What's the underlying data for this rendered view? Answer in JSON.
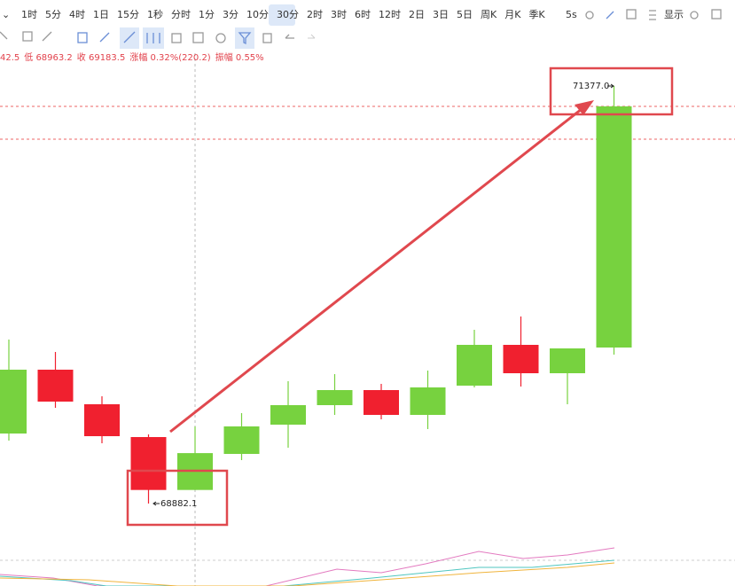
{
  "toolbar": {
    "intervals": [
      "1时",
      "5分",
      "4时",
      "1日",
      "15分",
      "1秒",
      "分时",
      "1分",
      "3分",
      "10分",
      "30分",
      "2时",
      "3时",
      "6时",
      "12时",
      "2日",
      "3日",
      "5日",
      "周K",
      "月K",
      "季K"
    ],
    "right": [
      "5s",
      "显示"
    ]
  },
  "info": [
    "42.5",
    "低 68963.2",
    "收 69183.5",
    "涨幅 0.32%(220.2)",
    "振幅 0.55%"
  ],
  "chart_data": {
    "type": "candlestick",
    "ylim": [
      68389.5,
      71573.0
    ],
    "up_color": "#77d23f",
    "down_color": "#f0202f",
    "candles": [
      {
        "open": 69300.6,
        "high": 69862.1,
        "low": 69258.2,
        "close": 69682.0
      },
      {
        "open": 69682.0,
        "high": 69787.9,
        "low": 69454.2,
        "close": 69491.3
      },
      {
        "open": 69475.4,
        "high": 69523.0,
        "low": 69242.3,
        "close": 69284.7
      },
      {
        "open": 69279.4,
        "high": 69295.3,
        "low": 68882.1,
        "close": 68963.3
      },
      {
        "open": 68963.3,
        "high": 69342.5,
        "low": 68963.2,
        "close": 69183.5
      },
      {
        "open": 69178.7,
        "high": 69422.4,
        "low": 69141.7,
        "close": 69343.0
      },
      {
        "open": 69353.5,
        "high": 69613.1,
        "low": 69215.8,
        "close": 69470.1
      },
      {
        "open": 69470.1,
        "high": 69655.5,
        "low": 69411.8,
        "close": 69560.1
      },
      {
        "open": 69560.1,
        "high": 69597.2,
        "low": 69385.3,
        "close": 69411.8
      },
      {
        "open": 69411.8,
        "high": 69676.7,
        "low": 69327.1,
        "close": 69576.0
      },
      {
        "open": 69586.6,
        "high": 69920.3,
        "low": 69576.0,
        "close": 69830.3
      },
      {
        "open": 69830.3,
        "high": 69999.8,
        "low": 69581.3,
        "close": 69660.8
      },
      {
        "open": 69660.8,
        "high": 69809.1,
        "low": 69475.4,
        "close": 69809.1
      },
      {
        "open": 69814.4,
        "high": 71377.0,
        "low": 69772.0,
        "close": 71255.2
      }
    ],
    "annotations": [
      {
        "value": 71377.0,
        "label": "71377.0"
      },
      {
        "value": 68882.1,
        "label": "68882.1"
      }
    ]
  }
}
